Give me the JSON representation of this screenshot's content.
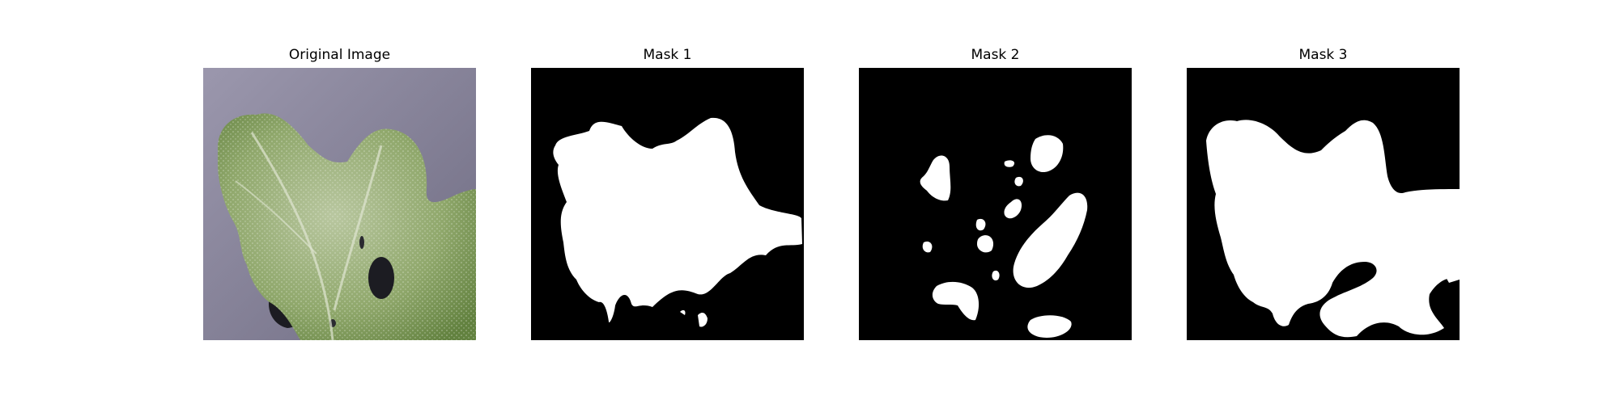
{
  "figure": {
    "panels": [
      {
        "title": "Original Image"
      },
      {
        "title": "Mask 1"
      },
      {
        "title": "Mask 2"
      },
      {
        "title": "Mask 3"
      }
    ]
  },
  "colors": {
    "background": "#ffffff",
    "mask_bg": "#000000",
    "mask_fg": "#ffffff",
    "surface": "#8c8a9e",
    "leaf": "#8fa86a",
    "leaf_dark": "#5f7a3e",
    "shadow": "#1c1c22"
  }
}
